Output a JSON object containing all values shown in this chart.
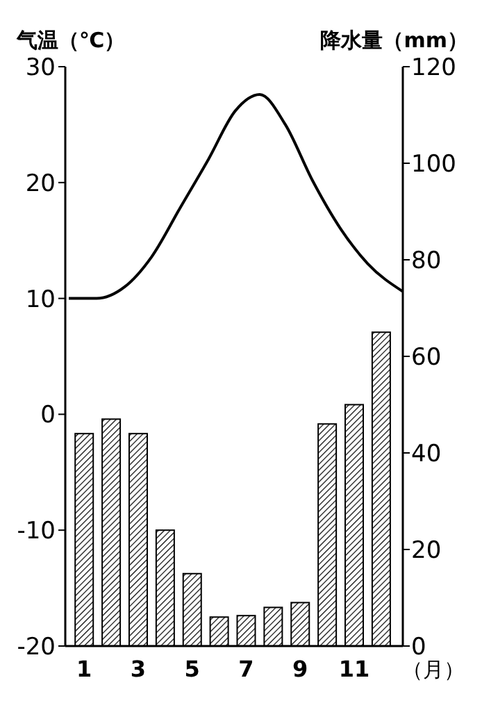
{
  "chart_data": {
    "type": "bar",
    "ylabel": "气温（℃）",
    "y2label": "降水量（mm）",
    "xlabel": "（月）",
    "x": [
      1,
      2,
      3,
      4,
      5,
      6,
      7,
      8,
      9,
      10,
      11,
      12
    ],
    "xlim": [
      0.3,
      12.8
    ],
    "xticks": [
      1,
      3,
      5,
      7,
      9,
      11
    ],
    "ylim": [
      -20,
      30
    ],
    "yticks": [
      -20,
      -10,
      0,
      10,
      20,
      30
    ],
    "y2lim": [
      0,
      120
    ],
    "y2ticks": [
      0,
      20,
      40,
      60,
      80,
      100,
      120
    ],
    "series": [
      {
        "axis": "y2",
        "color": "#000000",
        "values": [
          44,
          47,
          44,
          24,
          15,
          6,
          6.3,
          8,
          9,
          46,
          50,
          65
        ]
      },
      {
        "type": "line",
        "axis": "y",
        "color": "#000000",
        "x": [
          0.43,
          1.46,
          2.5,
          3.5,
          4.55,
          5.6,
          6.6,
          7.5,
          8.45,
          9.45,
          10.5,
          11.5,
          12.8
        ],
        "values": [
          10,
          10,
          11,
          13.6,
          17.8,
          22,
          26.2,
          27.6,
          25,
          20.2,
          16,
          13,
          10.6
        ]
      }
    ]
  }
}
